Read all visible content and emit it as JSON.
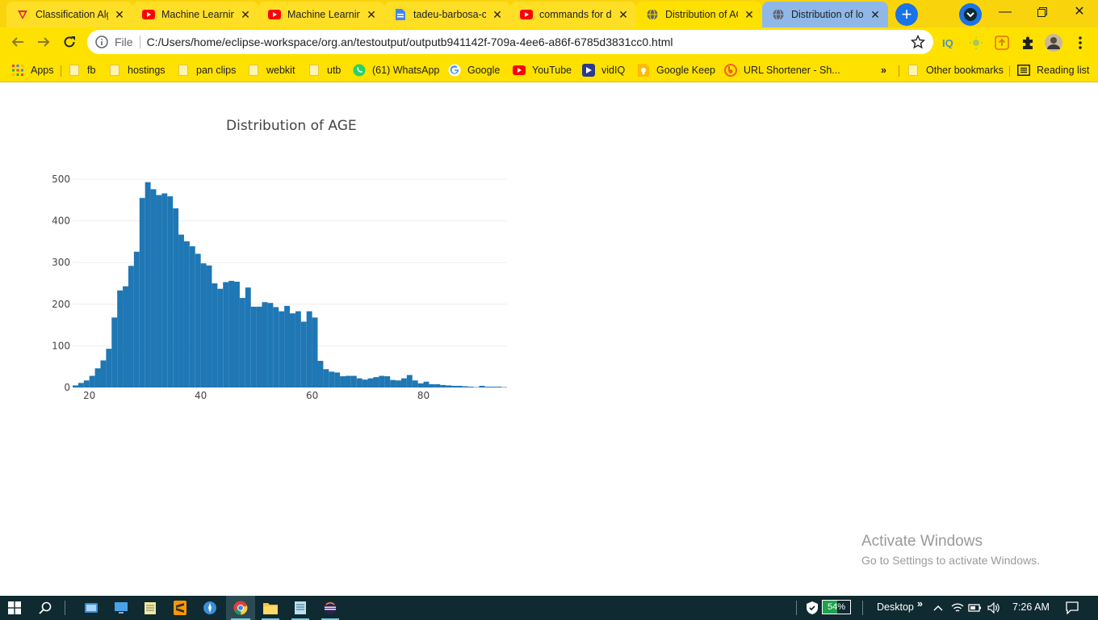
{
  "browser": {
    "tabs": [
      {
        "title": "Classification Alg",
        "icon": "vercel-icon",
        "active": false
      },
      {
        "title": "Machine Learning",
        "icon": "youtube-icon",
        "active": false
      },
      {
        "title": "Machine Learning",
        "icon": "youtube-icon",
        "active": false
      },
      {
        "title": "tadeu-barbosa-cl",
        "icon": "doc-icon",
        "active": false
      },
      {
        "title": "commands for dr",
        "icon": "youtube-icon",
        "active": false
      },
      {
        "title": "Distribution of AC",
        "icon": "globe-icon",
        "active": true
      },
      {
        "title": "Distribution of lo",
        "icon": "globe-icon",
        "active": false
      }
    ],
    "omnibox": {
      "scheme_label": "File",
      "url": "C:/Users/home/eclipse-workspace/org.an/testoutput/outputb941142f-709a-4ee6-a86f-6785d3831cc0.html"
    },
    "bookmarks": [
      {
        "label": "Apps",
        "icon": "apps-grid-icon"
      },
      {
        "label": "fb",
        "icon": "folder-icon"
      },
      {
        "label": "hostings",
        "icon": "folder-icon"
      },
      {
        "label": "pan clips",
        "icon": "folder-icon"
      },
      {
        "label": "webkit",
        "icon": "folder-icon"
      },
      {
        "label": "utb",
        "icon": "folder-icon"
      },
      {
        "label": "(61) WhatsApp",
        "icon": "whatsapp-icon"
      },
      {
        "label": "Google",
        "icon": "google-icon"
      },
      {
        "label": "YouTube",
        "icon": "youtube-icon"
      },
      {
        "label": "vidIQ",
        "icon": "vidiq-icon"
      },
      {
        "label": "Google Keep",
        "icon": "keep-icon"
      },
      {
        "label": "URL Shortener - Sh...",
        "icon": "bitly-icon"
      }
    ],
    "bookmarks_overflow": "»",
    "other_bookmarks": "Other bookmarks",
    "reading_list": "Reading list"
  },
  "chart_data": {
    "type": "bar",
    "title": "Distribution of  AGE",
    "xlabel": "",
    "ylabel": "",
    "xlim": [
      17,
      95
    ],
    "ylim": [
      0,
      520
    ],
    "x_ticks": [
      20,
      40,
      60,
      80
    ],
    "y_ticks": [
      0,
      100,
      200,
      300,
      400,
      500
    ],
    "grid": true,
    "bar_color": "#1f77b4",
    "bin_width": 1,
    "bin_start": 17,
    "values": [
      5,
      11,
      17,
      28,
      46,
      65,
      93,
      168,
      233,
      243,
      292,
      326,
      455,
      493,
      476,
      462,
      466,
      459,
      430,
      367,
      351,
      339,
      321,
      298,
      293,
      250,
      237,
      253,
      256,
      254,
      215,
      240,
      194,
      194,
      205,
      203,
      193,
      183,
      196,
      178,
      183,
      158,
      183,
      168,
      64,
      44,
      38,
      36,
      27,
      28,
      28,
      22,
      19,
      22,
      25,
      28,
      27,
      18,
      17,
      22,
      30,
      17,
      10,
      14,
      8,
      8,
      6,
      5,
      4,
      4,
      3,
      2,
      1,
      4,
      2,
      2,
      2,
      1
    ]
  },
  "watermark": {
    "line1": "Activate Windows",
    "line2": "Go to Settings to activate Windows."
  },
  "taskbar": {
    "battery_percent": "54%",
    "desktop_label": "Desktop",
    "clock": "7:26 AM"
  }
}
